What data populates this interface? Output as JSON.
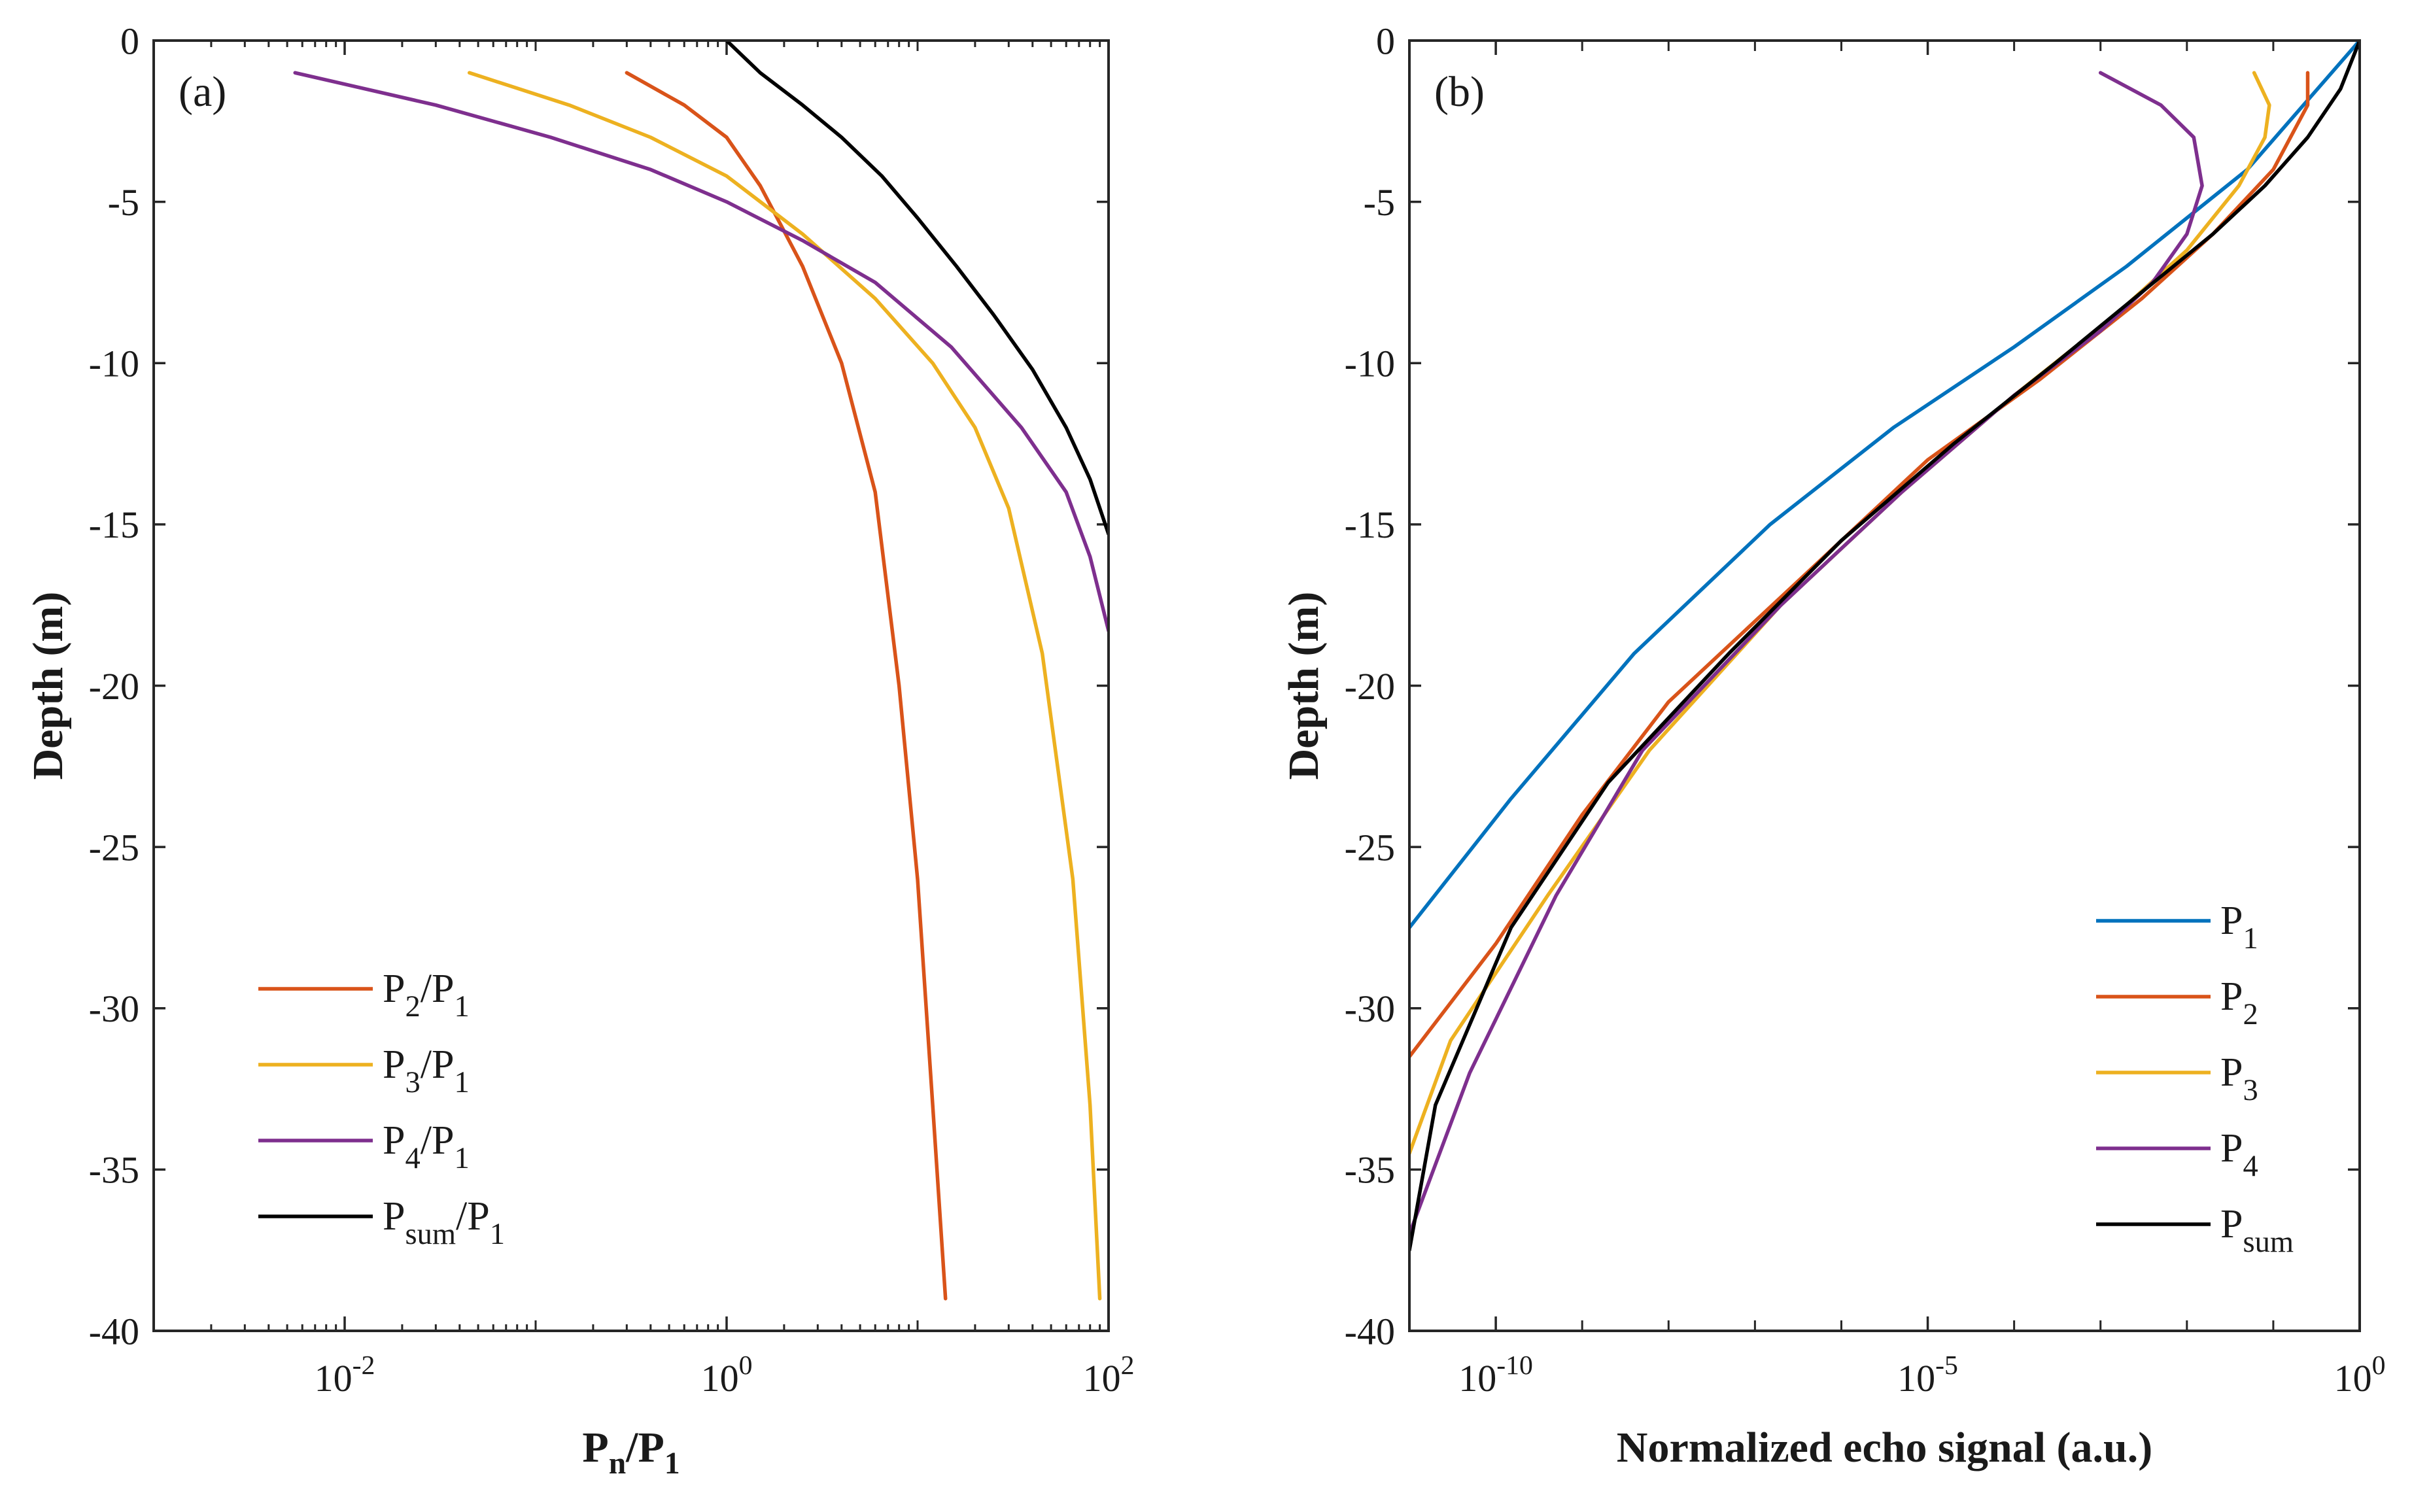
{
  "chart_data": [
    {
      "type": "line",
      "panel_label": "(a)",
      "xlabel": {
        "main": "P",
        "sub1": "n",
        "slash": "/P",
        "sub2": "1"
      },
      "ylabel": "Depth (m)",
      "xscale": "log",
      "xlim": [
        0.001,
        100
      ],
      "ylim": [
        -40,
        0
      ],
      "yticks": [
        0,
        -5,
        -10,
        -15,
        -20,
        -25,
        -30,
        -35,
        -40
      ],
      "xticks": [
        {
          "value": 0.01,
          "base": "10",
          "exp": "-2"
        },
        {
          "value": 1,
          "base": "10",
          "exp": "0"
        },
        {
          "value": 100,
          "base": "10",
          "exp": "2"
        }
      ],
      "legend_position": "bottom-left",
      "series": [
        {
          "name": "P2/P1",
          "label_parts": [
            "P",
            "2",
            "/P",
            "1"
          ],
          "color": "#D95319",
          "x": [
            0.3,
            0.6,
            1.0,
            1.5,
            2.5,
            4.0,
            6.0,
            8.0,
            10.0,
            12.0,
            14.0
          ],
          "y": [
            -1,
            -2,
            -3,
            -4.5,
            -7,
            -10,
            -14,
            -20,
            -26,
            -33,
            -39
          ]
        },
        {
          "name": "P3/P1",
          "label_parts": [
            "P",
            "3",
            "/P",
            "1"
          ],
          "color": "#EDB120",
          "x": [
            0.045,
            0.15,
            0.4,
            1.0,
            2.5,
            6.0,
            12.0,
            20.0,
            30.0,
            45.0,
            65.0,
            80.0,
            90.0
          ],
          "y": [
            -1,
            -2,
            -3,
            -4.2,
            -6,
            -8,
            -10,
            -12,
            -14.5,
            -19,
            -26,
            -33,
            -39
          ]
        },
        {
          "name": "P4/P1",
          "label_parts": [
            "P",
            "4",
            "/P",
            "1"
          ],
          "color": "#7E2F8E",
          "x": [
            0.0055,
            0.03,
            0.12,
            0.4,
            1.0,
            2.5,
            6.0,
            15.0,
            35.0,
            60.0,
            80.0,
            100.0
          ],
          "y": [
            -1,
            -2,
            -3,
            -4,
            -5,
            -6.2,
            -7.5,
            -9.5,
            -12,
            -14,
            -16,
            -18.3
          ]
        },
        {
          "name": "Psum/P1",
          "label_parts": [
            "P",
            "sum",
            "/P",
            "1"
          ],
          "color": "#000000",
          "x": [
            1.0,
            1.5,
            2.5,
            4.0,
            6.5,
            10.0,
            16.0,
            25.0,
            40.0,
            60.0,
            80.0,
            100.0
          ],
          "y": [
            0,
            -1,
            -2,
            -3,
            -4.2,
            -5.5,
            -7,
            -8.5,
            -10.2,
            -12,
            -13.6,
            -15.3
          ]
        }
      ]
    },
    {
      "type": "line",
      "panel_label": "(b)",
      "xlabel": "Normalized echo signal (a.u.)",
      "ylabel": "Depth (m)",
      "xscale": "log",
      "xlim": [
        1e-11,
        1
      ],
      "ylim": [
        -40,
        0
      ],
      "yticks": [
        0,
        -5,
        -10,
        -15,
        -20,
        -25,
        -30,
        -35,
        -40
      ],
      "xticks": [
        {
          "value": 1e-10,
          "base": "10",
          "exp": "-10"
        },
        {
          "value": 1e-05,
          "base": "10",
          "exp": "-5"
        },
        {
          "value": 1,
          "base": "10",
          "exp": "0"
        }
      ],
      "legend_position": "bottom-right",
      "series": [
        {
          "name": "P1",
          "label_parts": [
            "P",
            "1"
          ],
          "color": "#0072BD",
          "x": [
            1.0,
            0.05,
            0.002,
            0.0001,
            4e-06,
            1.5e-07,
            4e-09,
            1.5e-10,
            1e-11
          ],
          "y": [
            0,
            -4,
            -7,
            -9.5,
            -12,
            -15,
            -19,
            -23.5,
            -27.5
          ]
        },
        {
          "name": "P2",
          "label_parts": [
            "P",
            "2"
          ],
          "color": "#D95319",
          "x": [
            0.25,
            0.25,
            0.1,
            0.02,
            0.003,
            0.0002,
            1e-05,
            4e-07,
            1e-08,
            1e-09,
            1e-10,
            1e-11
          ],
          "y": [
            -1,
            -2,
            -4,
            -6,
            -8,
            -10.5,
            -13,
            -16.5,
            -20.5,
            -24,
            -28,
            -31.5
          ]
        },
        {
          "name": "P3",
          "label_parts": [
            "P",
            "3"
          ],
          "color": "#EDB120",
          "x": [
            0.06,
            0.09,
            0.08,
            0.04,
            0.01,
            0.0015,
            0.0001,
            5e-06,
            2e-07,
            6e-09,
            4e-10,
            3e-11,
            1e-11
          ],
          "y": [
            -1,
            -2,
            -3,
            -4.5,
            -6.5,
            -8.5,
            -11,
            -14,
            -17.5,
            -22,
            -26.5,
            -31,
            -34.5
          ]
        },
        {
          "name": "P4",
          "label_parts": [
            "P",
            "4"
          ],
          "color": "#7E2F8E",
          "x": [
            0.001,
            0.005,
            0.012,
            0.015,
            0.01,
            0.004,
            0.001,
            0.0001,
            5e-06,
            2e-07,
            5e-09,
            5e-10,
            5e-11,
            1e-11
          ],
          "y": [
            -1,
            -2,
            -3,
            -4.5,
            -6,
            -7.5,
            -9,
            -11,
            -14,
            -17.5,
            -22,
            -26.5,
            -32,
            -37
          ]
        },
        {
          "name": "Psum",
          "label_parts": [
            "P",
            "sum"
          ],
          "color": "#000000",
          "x": [
            1.0,
            0.6,
            0.25,
            0.08,
            0.02,
            0.003,
            0.0003,
            2e-05,
            1e-06,
            5e-08,
            2e-09,
            1.5e-10,
            2e-11,
            1e-11
          ],
          "y": [
            0,
            -1.5,
            -3,
            -4.5,
            -6,
            -7.8,
            -10,
            -12.5,
            -15.5,
            -19,
            -23,
            -27.5,
            -33,
            -37.5
          ]
        }
      ]
    }
  ]
}
